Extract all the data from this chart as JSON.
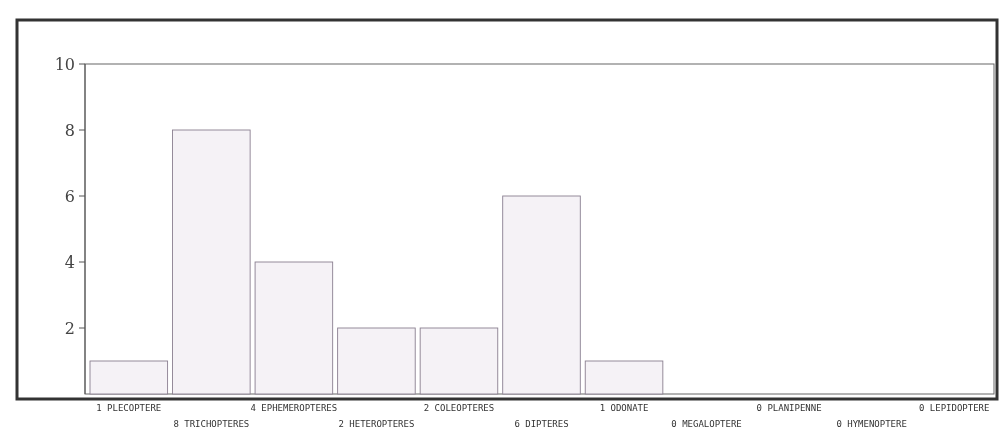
{
  "chart_data": {
    "type": "bar",
    "categories": [
      "1 PLECOPTERE",
      "8 TRICHOPTERES",
      "4 EPHEMEROPTERES",
      "2 HETEROPTERES",
      "2 COLEOPTERES",
      "6 DIPTERES",
      "1 ODONATE",
      "0 MEGALOPTERE",
      "0 PLANIPENNE",
      "0 HYMENOPTERE",
      "0 LEPIDOPTERE"
    ],
    "values": [
      1,
      8,
      4,
      2,
      2,
      6,
      1,
      0,
      0,
      0,
      0
    ],
    "color": "#f5f2f6",
    "ylim": [
      0,
      10
    ],
    "yticks": [
      2,
      4,
      6,
      8,
      10
    ]
  }
}
